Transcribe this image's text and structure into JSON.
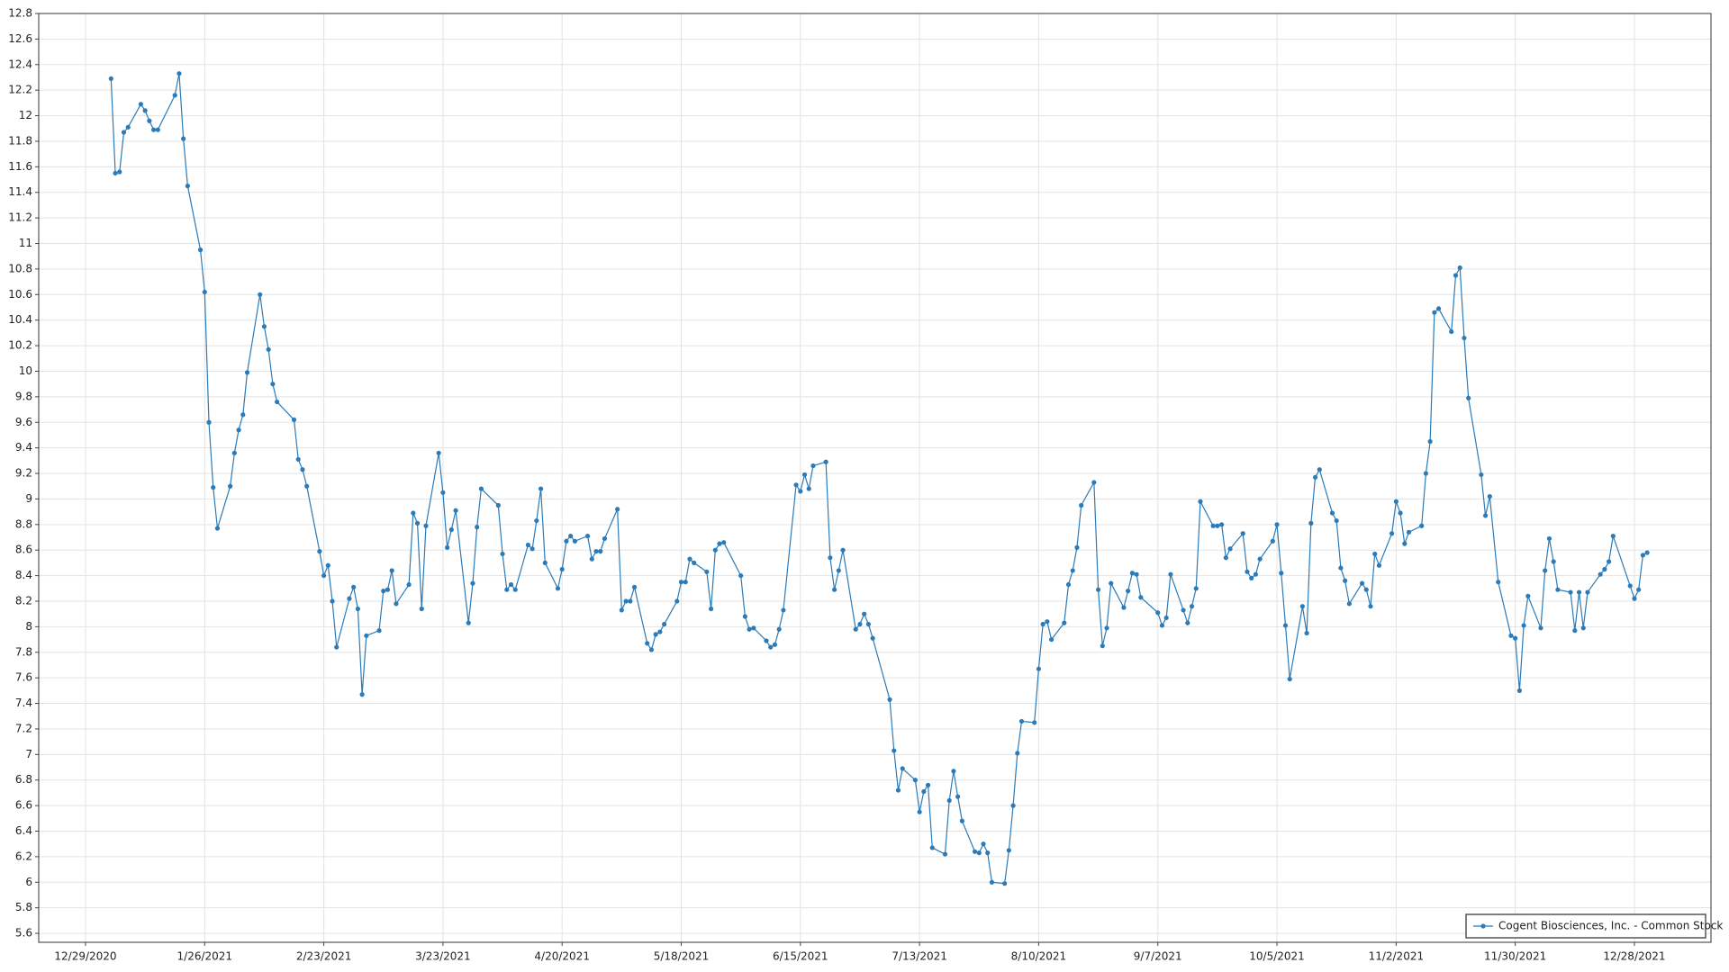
{
  "chart_data": {
    "type": "line",
    "x": [
      "2021-01-04",
      "2021-01-05",
      "2021-01-06",
      "2021-01-07",
      "2021-01-08",
      "2021-01-11",
      "2021-01-12",
      "2021-01-13",
      "2021-01-14",
      "2021-01-15",
      "2021-01-19",
      "2021-01-20",
      "2021-01-21",
      "2021-01-22",
      "2021-01-25",
      "2021-01-26",
      "2021-01-27",
      "2021-01-28",
      "2021-01-29",
      "2021-02-01",
      "2021-02-02",
      "2021-02-03",
      "2021-02-04",
      "2021-02-05",
      "2021-02-08",
      "2021-02-09",
      "2021-02-10",
      "2021-02-11",
      "2021-02-12",
      "2021-02-16",
      "2021-02-17",
      "2021-02-18",
      "2021-02-19",
      "2021-02-22",
      "2021-02-23",
      "2021-02-24",
      "2021-02-25",
      "2021-02-26",
      "2021-03-01",
      "2021-03-02",
      "2021-03-03",
      "2021-03-04",
      "2021-03-05",
      "2021-03-08",
      "2021-03-09",
      "2021-03-10",
      "2021-03-11",
      "2021-03-12",
      "2021-03-15",
      "2021-03-16",
      "2021-03-17",
      "2021-03-18",
      "2021-03-19",
      "2021-03-22",
      "2021-03-23",
      "2021-03-24",
      "2021-03-25",
      "2021-03-26",
      "2021-03-29",
      "2021-03-30",
      "2021-03-31",
      "2021-04-01",
      "2021-04-05",
      "2021-04-06",
      "2021-04-07",
      "2021-04-08",
      "2021-04-09",
      "2021-04-12",
      "2021-04-13",
      "2021-04-14",
      "2021-04-15",
      "2021-04-16",
      "2021-04-19",
      "2021-04-20",
      "2021-04-21",
      "2021-04-22",
      "2021-04-23",
      "2021-04-26",
      "2021-04-27",
      "2021-04-28",
      "2021-04-29",
      "2021-04-30",
      "2021-05-03",
      "2021-05-04",
      "2021-05-05",
      "2021-05-06",
      "2021-05-07",
      "2021-05-10",
      "2021-05-11",
      "2021-05-12",
      "2021-05-13",
      "2021-05-14",
      "2021-05-17",
      "2021-05-18",
      "2021-05-19",
      "2021-05-20",
      "2021-05-21",
      "2021-05-24",
      "2021-05-25",
      "2021-05-26",
      "2021-05-27",
      "2021-05-28",
      "2021-06-01",
      "2021-06-02",
      "2021-06-03",
      "2021-06-04",
      "2021-06-07",
      "2021-06-08",
      "2021-06-09",
      "2021-06-10",
      "2021-06-11",
      "2021-06-14",
      "2021-06-15",
      "2021-06-16",
      "2021-06-17",
      "2021-06-18",
      "2021-06-21",
      "2021-06-22",
      "2021-06-23",
      "2021-06-24",
      "2021-06-25",
      "2021-06-28",
      "2021-06-29",
      "2021-06-30",
      "2021-07-01",
      "2021-07-02",
      "2021-07-06",
      "2021-07-07",
      "2021-07-08",
      "2021-07-09",
      "2021-07-12",
      "2021-07-13",
      "2021-07-14",
      "2021-07-15",
      "2021-07-16",
      "2021-07-19",
      "2021-07-20",
      "2021-07-21",
      "2021-07-22",
      "2021-07-23",
      "2021-07-26",
      "2021-07-27",
      "2021-07-28",
      "2021-07-29",
      "2021-07-30",
      "2021-08-02",
      "2021-08-03",
      "2021-08-04",
      "2021-08-05",
      "2021-08-06",
      "2021-08-09",
      "2021-08-10",
      "2021-08-11",
      "2021-08-12",
      "2021-08-13",
      "2021-08-16",
      "2021-08-17",
      "2021-08-18",
      "2021-08-19",
      "2021-08-20",
      "2021-08-23",
      "2021-08-24",
      "2021-08-25",
      "2021-08-26",
      "2021-08-27",
      "2021-08-30",
      "2021-08-31",
      "2021-09-01",
      "2021-09-02",
      "2021-09-03",
      "2021-09-07",
      "2021-09-08",
      "2021-09-09",
      "2021-09-10",
      "2021-09-13",
      "2021-09-14",
      "2021-09-15",
      "2021-09-16",
      "2021-09-17",
      "2021-09-20",
      "2021-09-21",
      "2021-09-22",
      "2021-09-23",
      "2021-09-24",
      "2021-09-27",
      "2021-09-28",
      "2021-09-29",
      "2021-09-30",
      "2021-10-01",
      "2021-10-04",
      "2021-10-05",
      "2021-10-06",
      "2021-10-07",
      "2021-10-08",
      "2021-10-11",
      "2021-10-12",
      "2021-10-13",
      "2021-10-14",
      "2021-10-15",
      "2021-10-18",
      "2021-10-19",
      "2021-10-20",
      "2021-10-21",
      "2021-10-22",
      "2021-10-25",
      "2021-10-26",
      "2021-10-27",
      "2021-10-28",
      "2021-10-29",
      "2021-11-01",
      "2021-11-02",
      "2021-11-03",
      "2021-11-04",
      "2021-11-05",
      "2021-11-08",
      "2021-11-09",
      "2021-11-10",
      "2021-11-11",
      "2021-11-12",
      "2021-11-15",
      "2021-11-16",
      "2021-11-17",
      "2021-11-18",
      "2021-11-19",
      "2021-11-22",
      "2021-11-23",
      "2021-11-24",
      "2021-11-26",
      "2021-11-29",
      "2021-11-30",
      "2021-12-01",
      "2021-12-02",
      "2021-12-03",
      "2021-12-06",
      "2021-12-07",
      "2021-12-08",
      "2021-12-09",
      "2021-12-10",
      "2021-12-13",
      "2021-12-14",
      "2021-12-15",
      "2021-12-16",
      "2021-12-17",
      "2021-12-20",
      "2021-12-21",
      "2021-12-22",
      "2021-12-23",
      "2021-12-27",
      "2021-12-28",
      "2021-12-29",
      "2021-12-30",
      "2021-12-31"
    ],
    "series": [
      {
        "name": "Cogent Biosciences, Inc. - Common Stock",
        "color": "#2b7bb9",
        "values": [
          12.29,
          11.55,
          11.56,
          11.87,
          11.91,
          12.09,
          12.04,
          11.96,
          11.89,
          11.89,
          12.16,
          12.33,
          11.82,
          11.45,
          10.95,
          10.62,
          9.6,
          9.09,
          8.77,
          9.1,
          9.36,
          9.54,
          9.66,
          9.99,
          10.6,
          10.35,
          10.17,
          9.9,
          9.76,
          9.62,
          9.31,
          9.23,
          9.1,
          8.59,
          8.4,
          8.48,
          8.2,
          7.84,
          8.22,
          8.31,
          8.14,
          7.47,
          7.93,
          7.97,
          8.28,
          8.29,
          8.44,
          8.18,
          8.33,
          8.89,
          8.81,
          8.14,
          8.79,
          9.36,
          9.05,
          8.62,
          8.76,
          8.91,
          8.03,
          8.34,
          8.78,
          9.08,
          8.95,
          8.57,
          8.29,
          8.33,
          8.29,
          8.64,
          8.61,
          8.83,
          9.08,
          8.5,
          8.3,
          8.45,
          8.67,
          8.71,
          8.67,
          8.71,
          8.53,
          8.59,
          8.59,
          8.69,
          8.92,
          8.13,
          8.2,
          8.2,
          8.31,
          7.87,
          7.82,
          7.94,
          7.96,
          8.02,
          8.2,
          8.35,
          8.35,
          8.53,
          8.5,
          8.43,
          8.14,
          8.6,
          8.65,
          8.66,
          8.4,
          8.08,
          7.98,
          7.99,
          7.89,
          7.84,
          7.86,
          7.98,
          8.13,
          9.11,
          9.06,
          9.19,
          9.08,
          9.26,
          9.29,
          8.54,
          8.29,
          8.44,
          8.6,
          7.98,
          8.02,
          8.1,
          8.02,
          7.91,
          7.43,
          7.03,
          6.72,
          6.89,
          6.8,
          6.55,
          6.71,
          6.76,
          6.27,
          6.22,
          6.64,
          6.87,
          6.67,
          6.48,
          6.24,
          6.23,
          6.3,
          6.23,
          6.0,
          5.99,
          6.25,
          6.6,
          7.01,
          7.26,
          7.25,
          7.67,
          8.02,
          8.04,
          7.9,
          8.03,
          8.33,
          8.44,
          8.62,
          8.95,
          9.13,
          8.29,
          7.85,
          7.99,
          8.34,
          8.15,
          8.28,
          8.42,
          8.41,
          8.23,
          8.11,
          8.01,
          8.07,
          8.41,
          8.13,
          8.03,
          8.16,
          8.3,
          8.98,
          8.79,
          8.79,
          8.8,
          8.54,
          8.61,
          8.73,
          8.43,
          8.38,
          8.41,
          8.53,
          8.67,
          8.8,
          8.42,
          8.01,
          7.59,
          8.16,
          7.95,
          8.81,
          9.17,
          9.23,
          8.89,
          8.83,
          8.46,
          8.36,
          8.18,
          8.34,
          8.29,
          8.16,
          8.57,
          8.48,
          8.73,
          8.98,
          8.89,
          8.65,
          8.74,
          8.79,
          9.2,
          9.45,
          10.46,
          10.49,
          10.31,
          10.75,
          10.81,
          10.26,
          9.79,
          9.19,
          8.87,
          9.02,
          8.35,
          7.93,
          7.91,
          7.5,
          8.01,
          8.24,
          7.99,
          8.44,
          8.69,
          8.51,
          8.29,
          8.27,
          7.97,
          8.27,
          7.99,
          8.27,
          8.41,
          8.45,
          8.51,
          8.71,
          8.32,
          8.22,
          8.29,
          8.56,
          8.58
        ]
      }
    ],
    "xlim": [
      "2020-12-18",
      "2022-01-15"
    ],
    "xticks": [
      {
        "value": "2020-12-29",
        "label": "12/29/2020"
      },
      {
        "value": "2021-01-26",
        "label": "1/26/2021"
      },
      {
        "value": "2021-02-23",
        "label": "2/23/2021"
      },
      {
        "value": "2021-03-23",
        "label": "3/23/2021"
      },
      {
        "value": "2021-04-20",
        "label": "4/20/2021"
      },
      {
        "value": "2021-05-18",
        "label": "5/18/2021"
      },
      {
        "value": "2021-06-15",
        "label": "6/15/2021"
      },
      {
        "value": "2021-07-13",
        "label": "7/13/2021"
      },
      {
        "value": "2021-08-10",
        "label": "8/10/2021"
      },
      {
        "value": "2021-09-07",
        "label": "9/7/2021"
      },
      {
        "value": "2021-10-05",
        "label": "10/5/2021"
      },
      {
        "value": "2021-11-02",
        "label": "11/2/2021"
      },
      {
        "value": "2021-11-30",
        "label": "11/30/2021"
      },
      {
        "value": "2021-12-28",
        "label": "12/28/2021"
      }
    ],
    "ylim": [
      5.53,
      12.8
    ],
    "yticks": [
      5.6,
      5.8,
      6,
      6.2,
      6.4,
      6.6,
      6.8,
      7,
      7.2,
      7.4,
      7.6,
      7.8,
      8,
      8.2,
      8.4,
      8.6,
      8.8,
      9,
      9.2,
      9.4,
      9.6,
      9.8,
      10,
      10.2,
      10.4,
      10.6,
      10.8,
      11,
      11.2,
      11.4,
      11.6,
      11.8,
      12,
      12.2,
      12.4,
      12.6,
      12.8
    ],
    "grid": true,
    "markers": true,
    "legend": "lower right"
  }
}
